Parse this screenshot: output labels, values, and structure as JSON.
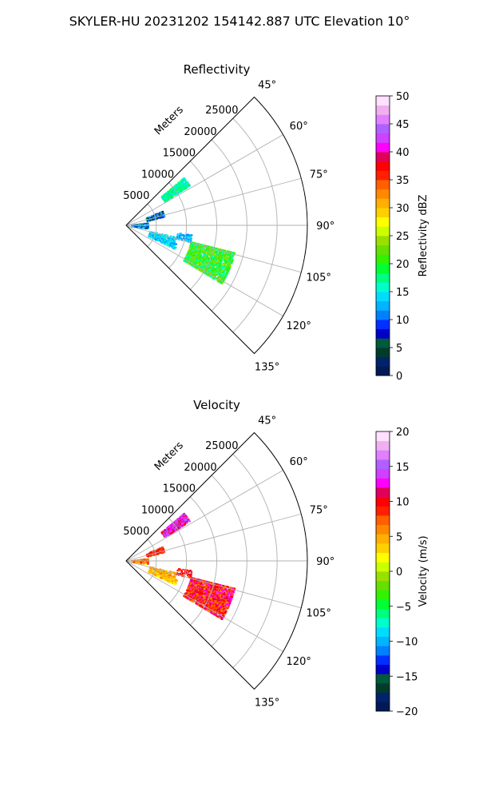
{
  "figure": {
    "suptitle": "SKYLER-HU  20231202  154142.887 UTC Elevation 10°"
  },
  "chart_data": [
    {
      "type": "heatmap",
      "subtype": "polar-sector (PPI)",
      "title": "Reflectivity",
      "radial_label": "Meters",
      "radial_ticks": [
        "5000",
        "10000",
        "15000",
        "20000",
        "25000"
      ],
      "radial_tick_values": [
        5000,
        10000,
        15000,
        20000,
        25000
      ],
      "r_max": 30000,
      "angle_ticks": [
        "45°",
        "60°",
        "75°",
        "90°",
        "105°",
        "120°",
        "135°"
      ],
      "angle_tick_values": [
        45,
        60,
        75,
        90,
        105,
        120,
        135
      ],
      "angle_range": [
        45,
        135
      ],
      "grid": true,
      "colorbar": {
        "label": "Reflectivity dBZ",
        "range": [
          0,
          50
        ],
        "ticks": [
          "0",
          "5",
          "10",
          "15",
          "20",
          "25",
          "30",
          "35",
          "40",
          "45",
          "50"
        ],
        "tick_values": [
          0,
          5,
          10,
          15,
          20,
          25,
          30,
          35,
          40,
          45,
          50
        ],
        "colors": [
          "#001a55",
          "#00236b",
          "#003c2b",
          "#005a3c",
          "#0000c8",
          "#0030ff",
          "#0080ff",
          "#00b4ff",
          "#00dcff",
          "#00ffcc",
          "#00ff80",
          "#00ff33",
          "#33f200",
          "#66e000",
          "#99e000",
          "#ccff00",
          "#ffff00",
          "#ffd000",
          "#ffb000",
          "#ff8800",
          "#ff6000",
          "#ff2000",
          "#ff0000",
          "#e0005a",
          "#ff00ff",
          "#d040ff",
          "#b060ff",
          "#e080ff",
          "#f0b0f0",
          "#ffe0ff"
        ]
      },
      "echo_regions": [
        {
          "az": [
            50,
            58
          ],
          "range": [
            7500,
            12500
          ],
          "values": [
            14,
            20
          ],
          "density": 0.85
        },
        {
          "az": [
            68,
            77
          ],
          "range": [
            3500,
            6500
          ],
          "values": [
            3,
            14
          ],
          "density": 0.55
        },
        {
          "az": [
            82,
            97
          ],
          "range": [
            800,
            3600
          ],
          "values": [
            5,
            16
          ],
          "density": 0.75
        },
        {
          "az": [
            98,
            105
          ],
          "range": [
            8500,
            11000
          ],
          "values": [
            11,
            15
          ],
          "density": 0.45
        },
        {
          "az": [
            103,
            110
          ],
          "range": [
            4000,
            8500
          ],
          "values": [
            12,
            16
          ],
          "density": 0.5
        },
        {
          "az": [
            110,
            116
          ],
          "range": [
            4000,
            9000
          ],
          "values": [
            11,
            16
          ],
          "density": 0.55
        },
        {
          "az": [
            104,
            122
          ],
          "range": [
            11000,
            18500
          ],
          "values": [
            15,
            25
          ],
          "density": 0.9
        }
      ]
    },
    {
      "type": "heatmap",
      "subtype": "polar-sector (PPI)",
      "title": "Velocity",
      "radial_label": "Meters",
      "radial_ticks": [
        "5000",
        "10000",
        "15000",
        "20000",
        "25000"
      ],
      "radial_tick_values": [
        5000,
        10000,
        15000,
        20000,
        25000
      ],
      "r_max": 30000,
      "angle_ticks": [
        "45°",
        "60°",
        "75°",
        "90°",
        "105°",
        "120°",
        "135°"
      ],
      "angle_tick_values": [
        45,
        60,
        75,
        90,
        105,
        120,
        135
      ],
      "angle_range": [
        45,
        135
      ],
      "grid": true,
      "colorbar": {
        "label": "Velocity (m/s)",
        "range": [
          -20,
          20
        ],
        "ticks": [
          "−20",
          "−15",
          "−10",
          "−5",
          "0",
          "5",
          "10",
          "15",
          "20"
        ],
        "tick_values": [
          -20,
          -15,
          -10,
          -5,
          0,
          5,
          10,
          15,
          20
        ],
        "colors": [
          "#001a55",
          "#00236b",
          "#003c2b",
          "#005a3c",
          "#0000c8",
          "#0030ff",
          "#0080ff",
          "#00b4ff",
          "#00dcff",
          "#00ffcc",
          "#00ff80",
          "#00ff33",
          "#33f200",
          "#66e000",
          "#99e000",
          "#ccff00",
          "#ffff00",
          "#ffd000",
          "#ffb000",
          "#ff8800",
          "#ff6000",
          "#ff2000",
          "#ff0000",
          "#e0005a",
          "#ff00ff",
          "#d040ff",
          "#b060ff",
          "#e080ff",
          "#f0b0f0",
          "#ffe0ff"
        ]
      },
      "echo_regions": [
        {
          "az": [
            50,
            58
          ],
          "range": [
            7500,
            12500
          ],
          "values": [
            10,
            16
          ],
          "density": 0.85
        },
        {
          "az": [
            68,
            77
          ],
          "range": [
            3500,
            6500
          ],
          "values": [
            7,
            11
          ],
          "density": 0.55
        },
        {
          "az": [
            82,
            97
          ],
          "range": [
            800,
            3600
          ],
          "values": [
            2,
            11
          ],
          "density": 0.75
        },
        {
          "az": [
            98,
            105
          ],
          "range": [
            8500,
            11000
          ],
          "values": [
            7,
            12
          ],
          "density": 0.45
        },
        {
          "az": [
            103,
            110
          ],
          "range": [
            4000,
            8500
          ],
          "values": [
            3,
            7
          ],
          "density": 0.5
        },
        {
          "az": [
            110,
            116
          ],
          "range": [
            4000,
            9000
          ],
          "values": [
            2,
            6
          ],
          "density": 0.55
        },
        {
          "az": [
            104,
            122
          ],
          "range": [
            11000,
            18500
          ],
          "values": [
            6,
            13
          ],
          "density": 0.9
        }
      ]
    }
  ]
}
